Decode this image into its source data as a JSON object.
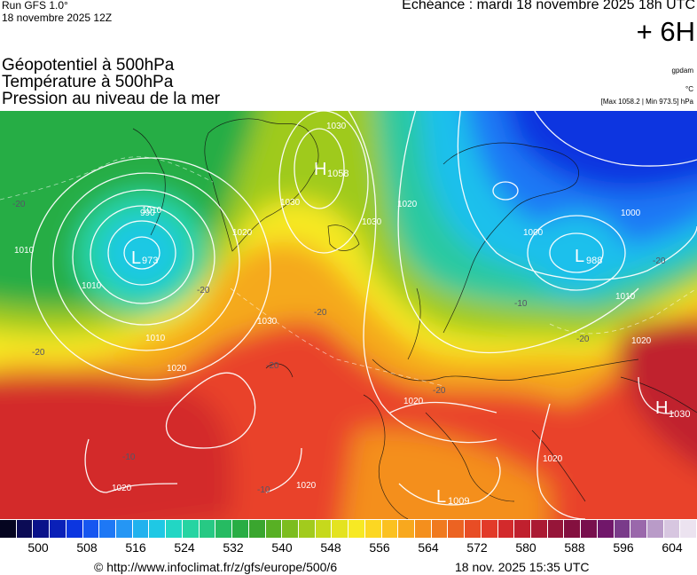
{
  "header": {
    "run_title": "Run GFS 1.0°",
    "run_date": "18 novembre 2025 12Z",
    "echeance": "Echéance : mardi 18 novembre 2025 18h UTC",
    "offset": "+ 6H",
    "variables": [
      "Géopotentiel à 500hPa",
      "Température à 500hPa",
      "Pression au niveau de la mer"
    ],
    "unit_geopotential": "gpdam",
    "unit_temperature": "°C",
    "pressure_range": "[Max 1058.2 | Min 973.5] hPa"
  },
  "map": {
    "pressure_centers": [
      {
        "type": "L",
        "value": "973"
      },
      {
        "type": "H",
        "value": "1058"
      },
      {
        "type": "L",
        "value": "988"
      },
      {
        "type": "H",
        "value": "1030"
      },
      {
        "type": "L",
        "value": "1009"
      }
    ],
    "isobar_labels": [
      "1030",
      "1030",
      "1030",
      "1020",
      "1010",
      "1000",
      "990",
      "1010",
      "1010",
      "1010",
      "1030",
      "1020",
      "1020",
      "1020",
      "1020",
      "1000",
      "1010",
      "1020",
      "1020",
      "1020"
    ],
    "temperature_labels": [
      "-20",
      "-20",
      "-20",
      "-20",
      "-20",
      "-20",
      "-20",
      "-20",
      "-10",
      "-10",
      "-10"
    ]
  },
  "colorbar": {
    "colors": [
      "#050520",
      "#0b0b55",
      "#0a128a",
      "#0a20b8",
      "#0c36e0",
      "#1656f0",
      "#1e78f5",
      "#2596f4",
      "#21b2ee",
      "#1fc8e4",
      "#22d6c4",
      "#26d4a2",
      "#27c984",
      "#26bb62",
      "#28ad44",
      "#3aa62f",
      "#58b024",
      "#7cbd1f",
      "#a2cb1d",
      "#c6d91c",
      "#e4e320",
      "#f7e924",
      "#fcd722",
      "#fbc120",
      "#f8a81e",
      "#f48f1d",
      "#f07a1f",
      "#ec6322",
      "#e84d25",
      "#e23a29",
      "#d32a2c",
      "#c0202e",
      "#ab1a33",
      "#961539",
      "#84103f",
      "#780f4d",
      "#71176a",
      "#7a3b8a",
      "#9a68ab",
      "#b99bc8",
      "#d7c6e0",
      "#ece3f0"
    ],
    "ticks": [
      "500",
      "508",
      "516",
      "524",
      "532",
      "540",
      "548",
      "556",
      "564",
      "572",
      "580",
      "588",
      "596",
      "604"
    ]
  },
  "footer": {
    "source": "© http://www.infoclimat.fr/z/gfs/europe/500/6",
    "timestamp": "18 nov. 2025 15:35 UTC"
  }
}
